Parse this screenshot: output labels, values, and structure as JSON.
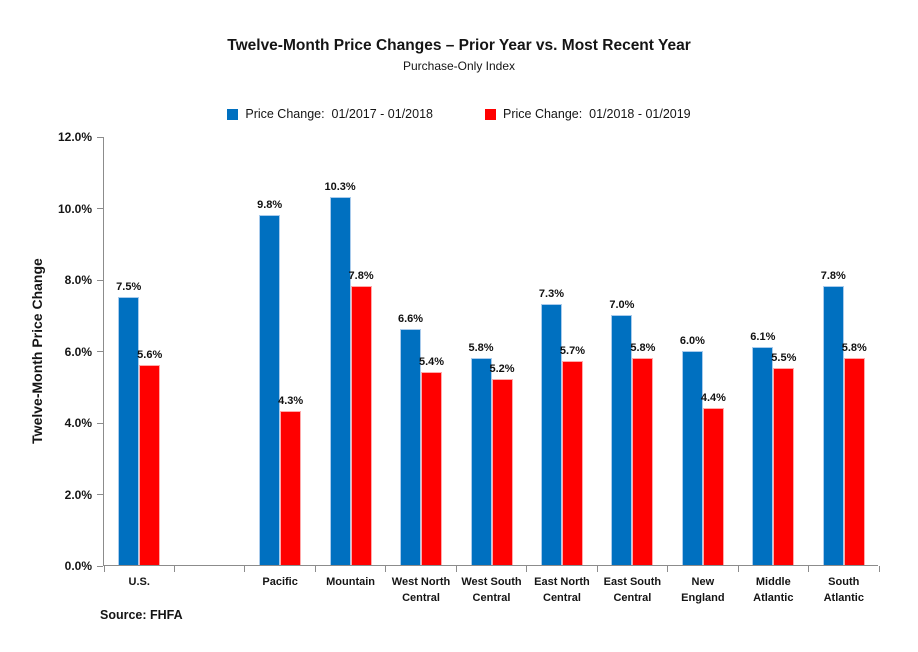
{
  "title": "Twelve-Month Price Changes – Prior Year vs. Most Recent Year",
  "subtitle": "Purchase-Only Index",
  "legend": [
    {
      "label": "Price Change:  01/2017 - 01/2018",
      "color": "#0070C0"
    },
    {
      "label": "Price Change:  01/2018 - 01/2019",
      "color": "#FF0000"
    }
  ],
  "source": "Source: FHFA",
  "colors": {
    "series1": "#0070C0",
    "series2": "#FF0000",
    "axis": "#8c8c8c",
    "text": "#151515"
  },
  "chart_data": {
    "type": "bar",
    "title": "Twelve-Month Price Changes – Prior Year vs. Most Recent Year",
    "subtitle": "Purchase-Only Index",
    "ylabel": "Twelve-Month Price Change",
    "xlabel": "",
    "ylim": [
      0,
      12
    ],
    "ytick_step": 2,
    "ytick_labels": [
      "0.0%",
      "2.0%",
      "4.0%",
      "6.0%",
      "8.0%",
      "10.0%",
      "12.0%"
    ],
    "grid": false,
    "legend_position": "top",
    "value_labels_shown": true,
    "spacer_slot_after_index": 0,
    "categories": [
      "U.S.",
      "Pacific",
      "Mountain",
      "West North Central",
      "West South Central",
      "East North Central",
      "East South Central",
      "New England",
      "Middle Atlantic",
      "South Atlantic"
    ],
    "category_label_lines": [
      [
        "U.S."
      ],
      [
        "Pacific"
      ],
      [
        "Mountain"
      ],
      [
        "West North",
        "Central"
      ],
      [
        "West South",
        "Central"
      ],
      [
        "East North",
        "Central"
      ],
      [
        "East South",
        "Central"
      ],
      [
        "New",
        "England"
      ],
      [
        "Middle",
        "Atlantic"
      ],
      [
        "South",
        "Atlantic"
      ]
    ],
    "series": [
      {
        "name": "Price Change:  01/2017 - 01/2018",
        "color": "#0070C0",
        "values": [
          7.5,
          9.8,
          10.3,
          6.6,
          5.8,
          7.3,
          7.0,
          6.0,
          6.1,
          7.8
        ]
      },
      {
        "name": "Price Change:  01/2018 - 01/2019",
        "color": "#FF0000",
        "values": [
          5.6,
          4.3,
          7.8,
          5.4,
          5.2,
          5.7,
          5.8,
          4.4,
          5.5,
          5.8
        ]
      }
    ]
  }
}
